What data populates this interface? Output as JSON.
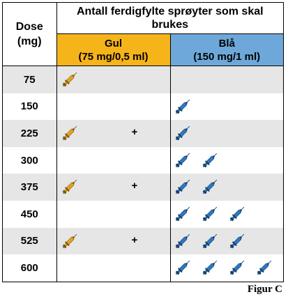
{
  "table": {
    "dose_header": "Dose (mg)",
    "title": "Antall ferdigfylte sprøyter som skal brukes",
    "yellow_header": {
      "name": "Gul",
      "detail": "(75 mg/0,5 ml)"
    },
    "blue_header": {
      "name": "Blå",
      "detail": "(150 mg/1 ml)"
    },
    "plus_sign": "+",
    "rows": [
      {
        "dose": "75",
        "yellow": 1,
        "blue": 0
      },
      {
        "dose": "150",
        "yellow": 0,
        "blue": 1
      },
      {
        "dose": "225",
        "yellow": 1,
        "blue": 1
      },
      {
        "dose": "300",
        "yellow": 0,
        "blue": 2
      },
      {
        "dose": "375",
        "yellow": 1,
        "blue": 2
      },
      {
        "dose": "450",
        "yellow": 0,
        "blue": 3
      },
      {
        "dose": "525",
        "yellow": 1,
        "blue": 3
      },
      {
        "dose": "600",
        "yellow": 0,
        "blue": 4
      }
    ]
  },
  "colors": {
    "yellow_header_bg": "#f6b41b",
    "blue_header_bg": "#6ea8da",
    "shaded_row_bg": "#e6e6e6",
    "yellow_syringe": "#e8a21c",
    "blue_syringe": "#2e78c0"
  },
  "icons": {
    "yellow": "yellow-syringe-icon",
    "blue": "blue-syringe-icon"
  },
  "figure_label": "Figur C"
}
